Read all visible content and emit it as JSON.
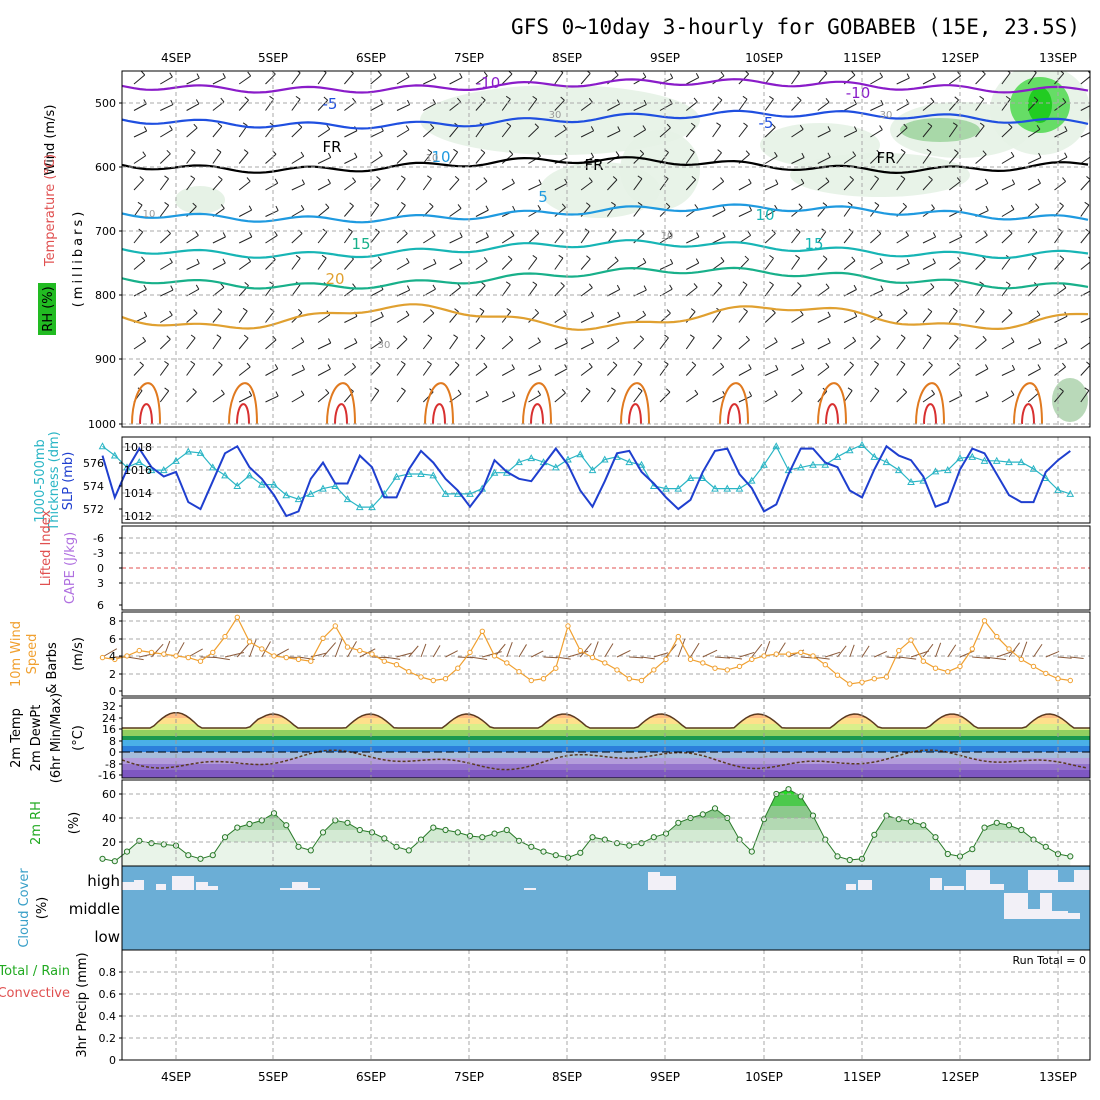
{
  "title": "GFS 0~10day 3-hourly for GOBABEB (15E, 23.5S)",
  "dates": [
    "4SEP",
    "5SEP",
    "6SEP",
    "7SEP",
    "8SEP",
    "9SEP",
    "10SEP",
    "11SEP",
    "12SEP",
    "13SEP"
  ],
  "run_total": "Run Total = 0",
  "colors": {
    "t_minus10": "#8a1cc9",
    "t_minus5": "#1f4fe0",
    "t_fr": "#000000",
    "t_5": "#1f9ae0",
    "t_10": "#17b5b5",
    "t_15": "#18b08a",
    "t_20": "#e0a030",
    "t_25": "#e07a20",
    "t_30": "#d83030",
    "rh_green": "#22cc22",
    "slp": "#1f3fcf",
    "thickness": "#2ab5c5",
    "wind": "#f0a030",
    "cloud": "#6baed6",
    "cloud_fill": "#f2f0f7"
  },
  "panels": {
    "upper": {
      "left_labels": [
        "Wind (m/s)",
        "Temperature (°C)",
        "RH (%)",
        "(millibars)"
      ],
      "yticks": [
        "500",
        "600",
        "700",
        "800",
        "900",
        "1000"
      ],
      "contour_labels": [
        {
          "text": "-10",
          "isoline": "t_minus10"
        },
        {
          "text": "-10",
          "isoline": "t_minus10"
        },
        {
          "text": "-5",
          "isoline": "t_minus5"
        },
        {
          "text": "-5",
          "isoline": "t_minus5"
        },
        {
          "text": "FR",
          "isoline": "t_fr"
        },
        {
          "text": "FR",
          "isoline": "t_fr"
        },
        {
          "text": "FR",
          "isoline": "t_fr"
        },
        {
          "text": "5",
          "isoline": "t_5"
        },
        {
          "text": "10",
          "isoline": "t_5"
        },
        {
          "text": "10",
          "isoline": "t_10"
        },
        {
          "text": "15",
          "isoline": "t_10"
        },
        {
          "text": "15",
          "isoline": "t_15"
        },
        {
          "text": "20",
          "isoline": "t_20"
        },
        {
          "text": "30",
          "isoline": "rh"
        },
        {
          "text": "30",
          "isoline": "rh"
        },
        {
          "text": "30",
          "isoline": "rh"
        },
        {
          "text": "10",
          "isoline": "rh"
        },
        {
          "text": "10",
          "isoline": "rh"
        },
        {
          "text": "10",
          "isoline": "rh"
        }
      ]
    },
    "slp_panel": {
      "left_labels": [
        "1000-500mb",
        "Thickness (dm)",
        "SLP (mb)"
      ],
      "thickness_ticks": [
        "576",
        "574",
        "572"
      ],
      "slp_ticks": [
        "1018",
        "1016",
        "1014",
        "1012"
      ]
    },
    "cape_panel": {
      "left_labels": [
        "Lifted Index",
        "CAPE (J/kg)"
      ],
      "li_ticks": [
        "-6",
        "-3",
        "0",
        "3",
        "6"
      ]
    },
    "wind_panel": {
      "left_labels": [
        "10m Wind",
        "Speed",
        "& Barbs",
        "(m/s)"
      ],
      "yticks": [
        "8",
        "6",
        "4",
        "2",
        "0"
      ]
    },
    "temp_panel": {
      "left_labels": [
        "2m Temp",
        "2m DewPt",
        "(6hr Min/Max)",
        "(°C)"
      ],
      "yticks": [
        "32",
        "24",
        "16",
        "8",
        "0",
        "-8",
        "-16"
      ]
    },
    "rh_panel": {
      "left_labels": [
        "2m RH",
        "(%)"
      ],
      "yticks": [
        "60",
        "40",
        "20"
      ]
    },
    "cloud_panel": {
      "left_labels": [
        "Cloud Cover",
        "(%)"
      ],
      "levels": [
        "high",
        "middle",
        "low"
      ]
    },
    "precip_panel": {
      "left_labels": [
        "Total / Rain",
        "Convective",
        "3hr Precip (mm)"
      ],
      "yticks": [
        "0.8",
        "0.6",
        "0.4",
        "0.2",
        "0"
      ]
    }
  },
  "chart_data": [
    {
      "type": "line",
      "title": "1000-500mb Thickness (dm) / SLP (mb)",
      "x": [
        "4SEP",
        "4SEP",
        "4SEP",
        "4SEP",
        "4SEP",
        "4SEP",
        "4SEP",
        "4SEP",
        "5SEP",
        "5SEP",
        "5SEP",
        "5SEP",
        "5SEP",
        "5SEP",
        "5SEP",
        "5SEP",
        "6SEP",
        "6SEP",
        "6SEP",
        "6SEP",
        "6SEP",
        "6SEP",
        "6SEP",
        "6SEP",
        "7SEP",
        "7SEP",
        "7SEP",
        "7SEP",
        "7SEP",
        "7SEP",
        "7SEP",
        "7SEP",
        "8SEP",
        "8SEP",
        "8SEP",
        "8SEP",
        "8SEP",
        "8SEP",
        "8SEP",
        "8SEP",
        "9SEP",
        "9SEP",
        "9SEP",
        "9SEP",
        "9SEP",
        "9SEP",
        "9SEP",
        "9SEP",
        "10SEP",
        "10SEP",
        "10SEP",
        "10SEP",
        "10SEP",
        "10SEP",
        "10SEP",
        "10SEP",
        "11SEP",
        "11SEP",
        "11SEP",
        "11SEP",
        "11SEP",
        "11SEP",
        "11SEP",
        "11SEP",
        "12SEP",
        "12SEP",
        "12SEP",
        "12SEP",
        "12SEP",
        "12SEP",
        "12SEP",
        "12SEP",
        "13SEP",
        "13SEP",
        "13SEP",
        "13SEP",
        "13SEP",
        "13SEP",
        "13SEP",
        "13SEP"
      ],
      "series": [
        {
          "name": "SLP (mb)",
          "axis": "right",
          "values": [
            1017.0,
            1013.4,
            1015.8,
            1017.6,
            1016.0,
            1015.2,
            1015.6,
            1013.0,
            1012.4,
            1014.8,
            1017.2,
            1017.8,
            1016.0,
            1015.0,
            1013.6,
            1011.8,
            1012.2,
            1015.0,
            1016.4,
            1014.6,
            1014.6,
            1017.0,
            1016.0,
            1013.4,
            1013.4,
            1015.8,
            1017.4,
            1016.4,
            1015.0,
            1014.0,
            1012.6,
            1014.0,
            1016.6,
            1015.6,
            1015.0,
            1014.8,
            1016.2,
            1017.6,
            1016.2,
            1014.0,
            1012.6,
            1014.8,
            1017.2,
            1017.4,
            1015.6,
            1014.6,
            1013.4,
            1012.4,
            1013.2,
            1015.6,
            1017.4,
            1017.6,
            1015.4,
            1014.2,
            1012.2,
            1012.8,
            1015.4,
            1017.6,
            1017.6,
            1016.4,
            1016.0,
            1014.0,
            1013.4,
            1015.8,
            1017.8,
            1017.0,
            1016.6,
            1015.2,
            1012.6,
            1013.0,
            1015.8,
            1017.6,
            1017.2,
            1015.4,
            1013.6,
            1013.0,
            1013.0,
            1015.6,
            1016.6,
            1017.4
          ]
        },
        {
          "name": "1000-500mb Thickness (dm)",
          "axis": "left",
          "values": [
            576.8,
            576.1,
            575.2,
            575.6,
            575.0,
            575.0,
            575.7,
            576.4,
            576.3,
            575.2,
            574.6,
            573.8,
            574.6,
            573.9,
            573.9,
            573.1,
            572.8,
            573.2,
            573.6,
            573.8,
            572.8,
            572.2,
            572.2,
            573.2,
            574.5,
            574.7,
            574.7,
            574.6,
            573.2,
            573.2,
            573.2,
            573.6,
            574.8,
            574.8,
            575.6,
            575.9,
            575.6,
            575.2,
            575.8,
            576.2,
            575.0,
            575.8,
            576.0,
            575.6,
            575.4,
            573.8,
            573.6,
            573.6,
            574.4,
            574.4,
            573.6,
            573.6,
            573.6,
            574.2,
            575.4,
            576.8,
            575.0,
            575.2,
            575.4,
            575.4,
            576.0,
            576.5,
            576.9,
            576.0,
            575.6,
            575.0,
            574.1,
            574.2,
            574.9,
            575.0,
            575.9,
            576.0,
            575.7,
            575.7,
            575.6,
            575.6,
            575.1,
            574.4,
            573.5,
            573.2
          ]
        }
      ],
      "ylim_left": [
        571,
        577.5
      ],
      "ylim_right": [
        1011.2,
        1018.6
      ],
      "grid": true
    },
    {
      "type": "line",
      "title": "10m Wind Speed & Barbs (m/s)",
      "x": [
        "4SEP",
        "4SEP",
        "4SEP",
        "4SEP",
        "4SEP",
        "4SEP",
        "4SEP",
        "4SEP",
        "5SEP",
        "5SEP",
        "5SEP",
        "5SEP",
        "5SEP",
        "5SEP",
        "5SEP",
        "5SEP",
        "6SEP",
        "6SEP",
        "6SEP",
        "6SEP",
        "6SEP",
        "6SEP",
        "6SEP",
        "6SEP",
        "7SEP",
        "7SEP",
        "7SEP",
        "7SEP",
        "7SEP",
        "7SEP",
        "7SEP",
        "7SEP",
        "8SEP",
        "8SEP",
        "8SEP",
        "8SEP",
        "8SEP",
        "8SEP",
        "8SEP",
        "8SEP",
        "9SEP",
        "9SEP",
        "9SEP",
        "9SEP",
        "9SEP",
        "9SEP",
        "9SEP",
        "9SEP",
        "10SEP",
        "10SEP",
        "10SEP",
        "10SEP",
        "10SEP",
        "10SEP",
        "10SEP",
        "10SEP",
        "11SEP",
        "11SEP",
        "11SEP",
        "11SEP",
        "11SEP",
        "11SEP",
        "11SEP",
        "11SEP",
        "12SEP",
        "12SEP",
        "12SEP",
        "12SEP",
        "12SEP",
        "12SEP",
        "12SEP",
        "12SEP",
        "13SEP",
        "13SEP",
        "13SEP",
        "13SEP",
        "13SEP",
        "13SEP",
        "13SEP",
        "13SEP"
      ],
      "series": [
        {
          "name": "10m Wind Speed (m/s)",
          "values": [
            3.8,
            3.6,
            4.0,
            4.6,
            4.4,
            4.2,
            4.0,
            3.8,
            3.4,
            4.4,
            6.2,
            8.4,
            5.6,
            4.8,
            4.0,
            3.8,
            3.6,
            3.4,
            6.0,
            7.4,
            5.0,
            4.6,
            4.2,
            3.4,
            3.0,
            2.2,
            1.6,
            1.2,
            1.4,
            2.6,
            4.4,
            6.8,
            4.0,
            3.2,
            2.2,
            1.2,
            1.4,
            2.6,
            7.4,
            4.6,
            3.8,
            3.2,
            2.4,
            1.4,
            1.2,
            2.4,
            3.6,
            6.2,
            3.6,
            3.2,
            2.6,
            2.4,
            2.8,
            3.6,
            4.0,
            4.2,
            4.2,
            4.4,
            4.0,
            3.0,
            1.8,
            0.8,
            1.0,
            1.4,
            1.6,
            4.6,
            5.8,
            3.4,
            2.6,
            2.2,
            2.8,
            4.8,
            8.0,
            6.2,
            4.8,
            3.6,
            2.8,
            2.0,
            1.4,
            1.2
          ]
        }
      ],
      "ylim": [
        0,
        9
      ],
      "grid": true
    },
    {
      "type": "area",
      "title": "2m RH (%)",
      "x": [
        "4SEP",
        "4SEP",
        "4SEP",
        "4SEP",
        "4SEP",
        "4SEP",
        "4SEP",
        "4SEP",
        "5SEP",
        "5SEP",
        "5SEP",
        "5SEP",
        "5SEP",
        "5SEP",
        "5SEP",
        "5SEP",
        "6SEP",
        "6SEP",
        "6SEP",
        "6SEP",
        "6SEP",
        "6SEP",
        "6SEP",
        "6SEP",
        "7SEP",
        "7SEP",
        "7SEP",
        "7SEP",
        "7SEP",
        "7SEP",
        "7SEP",
        "7SEP",
        "8SEP",
        "8SEP",
        "8SEP",
        "8SEP",
        "8SEP",
        "8SEP",
        "8SEP",
        "8SEP",
        "9SEP",
        "9SEP",
        "9SEP",
        "9SEP",
        "9SEP",
        "9SEP",
        "9SEP",
        "9SEP",
        "10SEP",
        "10SEP",
        "10SEP",
        "10SEP",
        "10SEP",
        "10SEP",
        "10SEP",
        "10SEP",
        "11SEP",
        "11SEP",
        "11SEP",
        "11SEP",
        "11SEP",
        "11SEP",
        "11SEP",
        "11SEP",
        "12SEP",
        "12SEP",
        "12SEP",
        "12SEP",
        "12SEP",
        "12SEP",
        "12SEP",
        "12SEP",
        "13SEP",
        "13SEP",
        "13SEP",
        "13SEP",
        "13SEP",
        "13SEP",
        "13SEP",
        "13SEP"
      ],
      "series": [
        {
          "name": "2m RH (%)",
          "values": [
            6,
            4,
            12,
            21,
            19,
            18,
            17,
            9,
            6,
            9,
            24,
            32,
            35,
            38,
            44,
            34,
            16,
            13,
            28,
            38,
            36,
            30,
            28,
            23,
            16,
            13,
            22,
            32,
            30,
            28,
            25,
            24,
            27,
            30,
            21,
            16,
            12,
            9,
            7,
            11,
            24,
            22,
            19,
            17,
            19,
            24,
            27,
            36,
            40,
            43,
            48,
            40,
            22,
            12,
            39,
            60,
            64,
            58,
            42,
            22,
            8,
            5,
            6,
            26,
            42,
            39,
            37,
            34,
            24,
            10,
            8,
            14,
            32,
            36,
            34,
            30,
            22,
            16,
            10,
            8
          ]
        }
      ],
      "ylim": [
        0,
        70
      ],
      "grid": true
    },
    {
      "type": "line",
      "title": "3hr Precip (mm)",
      "x": [
        "4SEP",
        "5SEP",
        "6SEP",
        "7SEP",
        "8SEP",
        "9SEP",
        "10SEP",
        "11SEP",
        "12SEP",
        "13SEP"
      ],
      "series": [],
      "ylim": [
        0,
        1
      ],
      "grid": true
    }
  ]
}
